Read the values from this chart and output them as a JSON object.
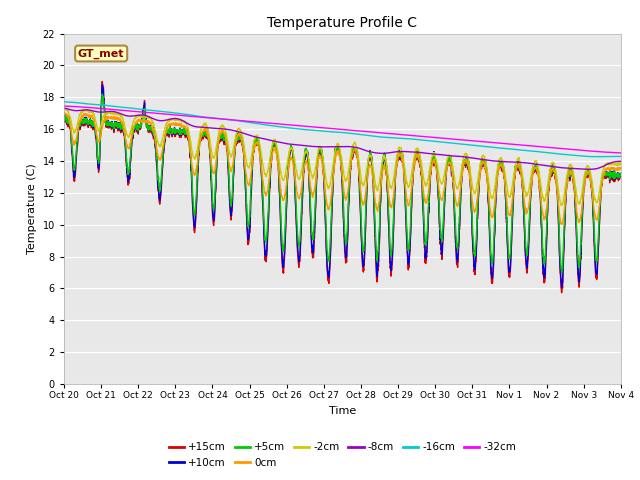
{
  "title": "Temperature Profile C",
  "xlabel": "Time",
  "ylabel": "Temperature (C)",
  "ylim": [
    0,
    22
  ],
  "yticks": [
    0,
    2,
    4,
    6,
    8,
    10,
    12,
    14,
    16,
    18,
    20,
    22
  ],
  "fig_bg": "#ffffff",
  "plot_bg": "#e8e8e8",
  "series": [
    {
      "label": "+15cm",
      "color": "#dd0000",
      "lw": 1.0
    },
    {
      "label": "+10cm",
      "color": "#0000dd",
      "lw": 1.0
    },
    {
      "label": "+5cm",
      "color": "#00cc00",
      "lw": 1.0
    },
    {
      "label": "0cm",
      "color": "#ff9900",
      "lw": 1.0
    },
    {
      "label": "-2cm",
      "color": "#cccc00",
      "lw": 1.0
    },
    {
      "label": "-8cm",
      "color": "#9900cc",
      "lw": 1.0
    },
    {
      "label": "-16cm",
      "color": "#00cccc",
      "lw": 1.0
    },
    {
      "label": "-32cm",
      "color": "#ff00ff",
      "lw": 1.0
    }
  ],
  "xtick_labels": [
    "Oct 20",
    "Oct 21",
    "Oct 22",
    "Oct 23",
    "Oct 24",
    "Oct 25",
    "Oct 26",
    "Oct 27",
    "Oct 28",
    "Oct 29",
    "Oct 30",
    "Oct 31",
    "Nov 1",
    "Nov 2",
    "Nov 3",
    "Nov 4"
  ],
  "annotation_text": "GT_met",
  "annotation_color": "#880000",
  "annotation_bg": "#ffffbb",
  "annotation_edge": "#aa8844"
}
